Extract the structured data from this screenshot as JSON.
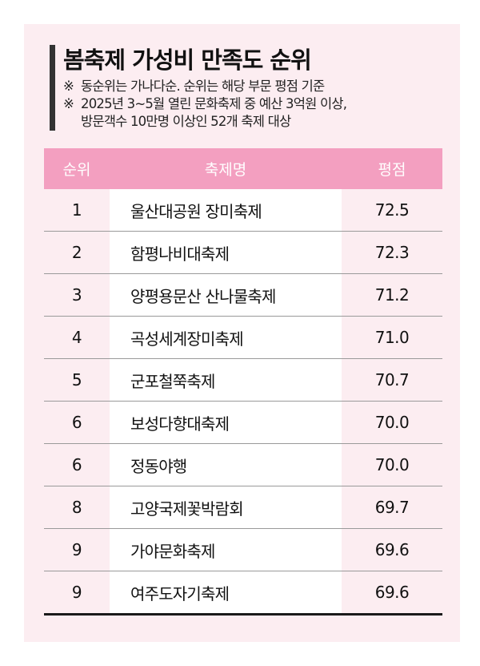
{
  "title": "봄축제 가성비 만족도 순위",
  "notes": [
    {
      "mark": "※",
      "text": "동순위는 가나다순. 순위는 해당 부문 평점 기준"
    },
    {
      "mark": "※",
      "text": "2025년 3~5월 열린 문화축제 중 예산 3억원 이상,\n방문객수 10만명 이상인 52개 축제 대상"
    }
  ],
  "chart_data": {
    "type": "table",
    "title": "봄축제 가성비 만족도 순위",
    "columns": [
      "순위",
      "축제명",
      "평점"
    ],
    "rows": [
      [
        "1",
        "울산대공원 장미축제",
        "72.5"
      ],
      [
        "2",
        "함평나비대축제",
        "72.3"
      ],
      [
        "3",
        "양평용문산 산나물축제",
        "71.2"
      ],
      [
        "4",
        "곡성세계장미축제",
        "71.0"
      ],
      [
        "5",
        "군포철쭉축제",
        "70.7"
      ],
      [
        "6",
        "보성다향대축제",
        "70.0"
      ],
      [
        "6",
        "정동야행",
        "70.0"
      ],
      [
        "8",
        "고양국제꽃박람회",
        "69.7"
      ],
      [
        "9",
        "가야문화축제",
        "69.6"
      ],
      [
        "9",
        "여주도자기축제",
        "69.6"
      ]
    ]
  },
  "colors": {
    "panel_bg": "#fcedf1",
    "header_bg": "#f39fc0",
    "header_text": "#ffffff",
    "accent_bar": "#333333"
  }
}
